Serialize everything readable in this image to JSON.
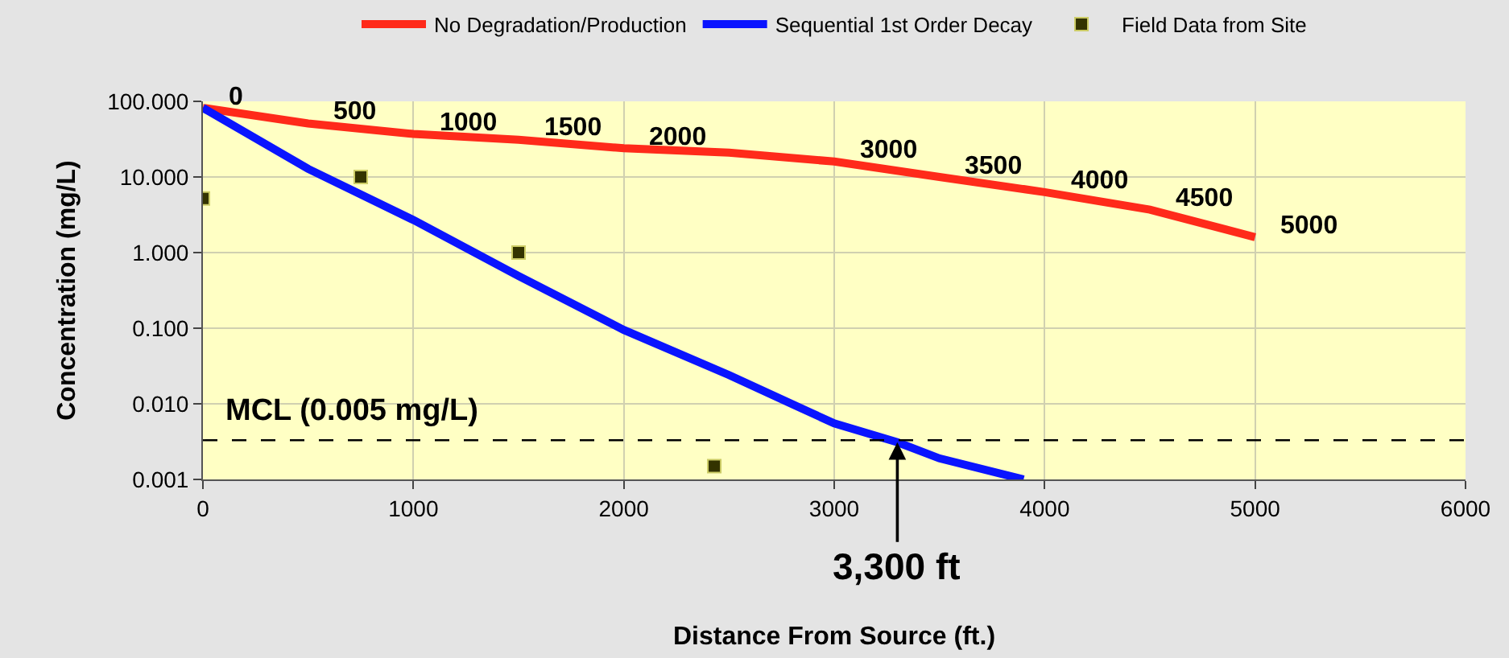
{
  "chart_data": {
    "type": "line",
    "xlabel": "Distance From Source (ft.)",
    "ylabel": "Concentration (mg/L)",
    "log": "y",
    "xlim": [
      0,
      6000
    ],
    "xticks": [
      0,
      1000,
      2000,
      3000,
      4000,
      5000,
      6000
    ],
    "ylim": [
      0.001,
      100
    ],
    "yticks": [
      {
        "value": 100,
        "label": "100.000"
      },
      {
        "value": 10,
        "label": "10.000"
      },
      {
        "value": 1,
        "label": "1.000"
      },
      {
        "value": 0.1,
        "label": "0.100"
      },
      {
        "value": 0.01,
        "label": "0.010"
      },
      {
        "value": 0.001,
        "label": "0.001"
      }
    ],
    "grid": true,
    "legend": "top",
    "series": [
      {
        "name": "No Degradation/Production",
        "color": "#ff2a1a",
        "marker": "none",
        "x": [
          0,
          500,
          1000,
          1500,
          2000,
          2500,
          3000,
          3500,
          4000,
          4500,
          5000
        ],
        "values": [
          82,
          51,
          37,
          31,
          24,
          21,
          16,
          10,
          6.3,
          3.7,
          1.6
        ]
      },
      {
        "name": "Sequential 1st Order Decay",
        "color": "#0a14ff",
        "marker": "none",
        "x": [
          0,
          500,
          1000,
          1500,
          2000,
          2500,
          3000,
          3300,
          3500,
          3900
        ],
        "values": [
          82,
          12.8,
          2.7,
          0.49,
          0.095,
          0.024,
          0.0055,
          0.0031,
          0.0019,
          0.001
        ]
      },
      {
        "name": "Field Data from Site",
        "type": "scatter",
        "color": "#333300",
        "marker": "square",
        "x": [
          0,
          750,
          1500,
          2430
        ],
        "values": [
          5.2,
          10,
          1.0,
          0.0015
        ]
      }
    ],
    "ref_lines": [
      {
        "axis": "y",
        "value": 0.0033,
        "label": "MCL (0.005 mg/L)",
        "color": "#000000",
        "line_style": "dashed"
      }
    ],
    "annotations": [
      {
        "text": "0",
        "x": 0,
        "y": 82
      },
      {
        "text": "500",
        "x": 500,
        "y": 51
      },
      {
        "text": "1000",
        "x": 1000,
        "y": 37
      },
      {
        "text": "1500",
        "x": 1500,
        "y": 31
      },
      {
        "text": "2000",
        "x": 2000,
        "y": 24
      },
      {
        "text": "3000",
        "x": 3000,
        "y": 16
      },
      {
        "text": "3500",
        "x": 3500,
        "y": 10
      },
      {
        "text": "4000",
        "x": 4000,
        "y": 6.3
      },
      {
        "text": "4500",
        "x": 4500,
        "y": 3.7
      },
      {
        "text": "5000",
        "x": 5000,
        "y": 1.6
      },
      {
        "text": "3,300 ft",
        "x": 3300,
        "y": 0.0031
      }
    ]
  }
}
